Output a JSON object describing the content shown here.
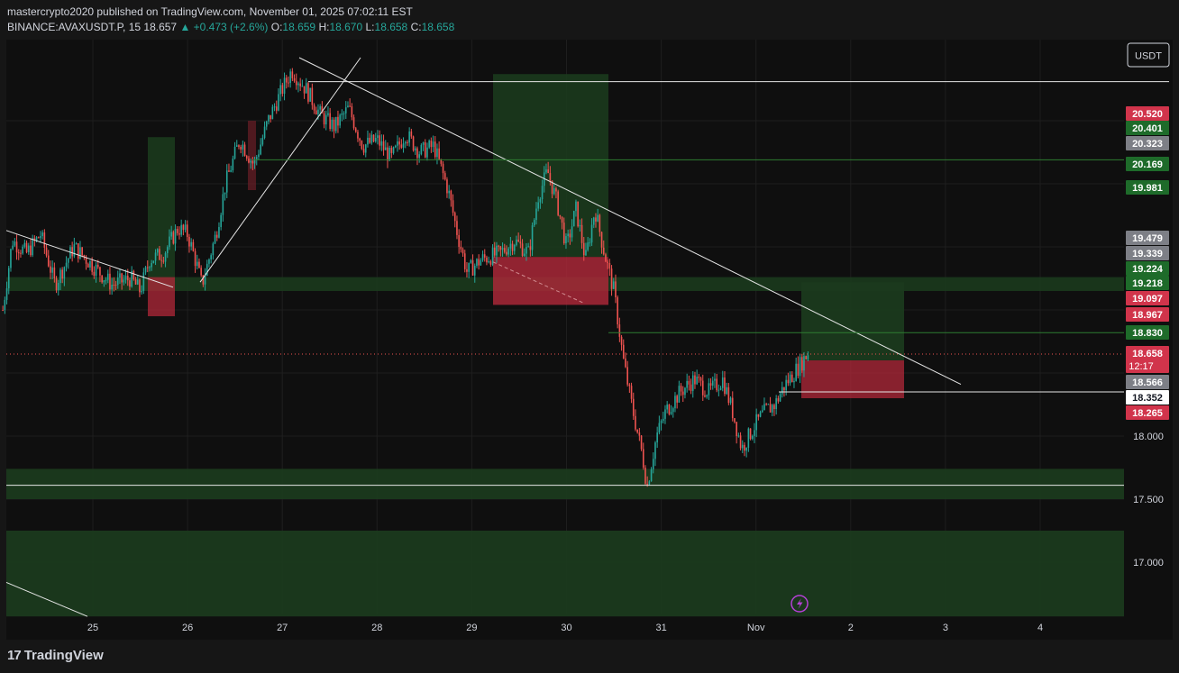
{
  "header": {
    "publisher": "mastercrypto2020 published on TradingView.com, November 01, 2025 07:02:11 EST",
    "symbol": "BINANCE:AVAXUSDT.P, 15",
    "last": "18.657",
    "change": "▲ +0.473 (+2.6%)",
    "o_label": "O:",
    "o_value": "18.659",
    "h_label": "H:",
    "h_value": "18.670",
    "l_label": "L:",
    "l_value": "18.658",
    "c_label": "C:",
    "c_value": "18.658"
  },
  "currency_button": "USDT",
  "footer": {
    "logo_text": "TradingView"
  },
  "colors": {
    "background": "#161616",
    "chart_area": "#0f0f0f",
    "up": "#26a69a",
    "down": "#ef5350",
    "green_zone": "#1b3a1d",
    "red_zone": "#b2283a",
    "label_green": "#1e6b2a",
    "label_red": "#d1344b",
    "label_gray": "#7d7f86"
  },
  "chart_data": {
    "type": "candlestick",
    "x_tick_labels": [
      "25",
      "26",
      "27",
      "28",
      "29",
      "30",
      "31",
      "Nov",
      "2",
      "3",
      "4"
    ],
    "y_tick_labels": [
      "18.000",
      "17.500",
      "17.000"
    ],
    "ylim": [
      16.57,
      21.08
    ],
    "price_labels": [
      {
        "text": "20.520",
        "value": 20.52,
        "style": "red"
      },
      {
        "text": "20.401",
        "value": 20.401,
        "style": "green"
      },
      {
        "text": "20.323",
        "value": 20.323,
        "style": "gray"
      },
      {
        "text": "20.169",
        "value": 20.169,
        "style": "green"
      },
      {
        "text": "19.981",
        "value": 19.981,
        "style": "green"
      },
      {
        "text": "19.479",
        "value": 19.479,
        "style": "gray"
      },
      {
        "text": "19.339",
        "value": 19.339,
        "style": "gray"
      },
      {
        "text": "19.224",
        "value": 19.224,
        "style": "green"
      },
      {
        "text": "19.218",
        "value": 19.218,
        "style": "green"
      },
      {
        "text": "19.097",
        "value": 19.097,
        "style": "red"
      },
      {
        "text": "18.967",
        "value": 18.967,
        "style": "red"
      },
      {
        "text": "18.830",
        "value": 18.83,
        "style": "green"
      },
      {
        "text": "18.658",
        "value": 18.658,
        "style": "red",
        "sub": "12:17"
      },
      {
        "text": "18.566",
        "value": 18.566,
        "style": "gray"
      },
      {
        "text": "18.352",
        "value": 18.352,
        "style": "white"
      },
      {
        "text": "18.265",
        "value": 18.265,
        "style": "red"
      }
    ],
    "price_path": [
      {
        "day": 24.05,
        "price": 19.0
      },
      {
        "day": 24.15,
        "price": 19.55
      },
      {
        "day": 24.3,
        "price": 19.45
      },
      {
        "day": 24.45,
        "price": 19.6
      },
      {
        "day": 24.6,
        "price": 19.2
      },
      {
        "day": 24.8,
        "price": 19.5
      },
      {
        "day": 25.0,
        "price": 19.35
      },
      {
        "day": 25.2,
        "price": 19.2
      },
      {
        "day": 25.4,
        "price": 19.25
      },
      {
        "day": 25.5,
        "price": 19.15
      },
      {
        "day": 25.6,
        "price": 19.4
      },
      {
        "day": 25.75,
        "price": 19.45
      },
      {
        "day": 25.9,
        "price": 19.65
      },
      {
        "day": 26.0,
        "price": 19.6
      },
      {
        "day": 26.1,
        "price": 19.35
      },
      {
        "day": 26.15,
        "price": 19.2
      },
      {
        "day": 26.3,
        "price": 19.6
      },
      {
        "day": 26.4,
        "price": 20.0
      },
      {
        "day": 26.55,
        "price": 20.35
      },
      {
        "day": 26.7,
        "price": 20.15
      },
      {
        "day": 26.85,
        "price": 20.5
      },
      {
        "day": 27.0,
        "price": 20.75
      },
      {
        "day": 27.1,
        "price": 20.9
      },
      {
        "day": 27.25,
        "price": 20.75
      },
      {
        "day": 27.4,
        "price": 20.55
      },
      {
        "day": 27.55,
        "price": 20.45
      },
      {
        "day": 27.7,
        "price": 20.6
      },
      {
        "day": 27.85,
        "price": 20.3
      },
      {
        "day": 28.0,
        "price": 20.35
      },
      {
        "day": 28.15,
        "price": 20.2
      },
      {
        "day": 28.3,
        "price": 20.4
      },
      {
        "day": 28.45,
        "price": 20.25
      },
      {
        "day": 28.6,
        "price": 20.3
      },
      {
        "day": 28.75,
        "price": 19.95
      },
      {
        "day": 28.85,
        "price": 19.6
      },
      {
        "day": 28.95,
        "price": 19.3
      },
      {
        "day": 29.1,
        "price": 19.4
      },
      {
        "day": 29.3,
        "price": 19.45
      },
      {
        "day": 29.45,
        "price": 19.55
      },
      {
        "day": 29.6,
        "price": 19.45
      },
      {
        "day": 29.7,
        "price": 19.9
      },
      {
        "day": 29.8,
        "price": 20.1
      },
      {
        "day": 29.9,
        "price": 19.85
      },
      {
        "day": 30.0,
        "price": 19.5
      },
      {
        "day": 30.1,
        "price": 19.8
      },
      {
        "day": 30.2,
        "price": 19.4
      },
      {
        "day": 30.3,
        "price": 19.8
      },
      {
        "day": 30.4,
        "price": 19.45
      },
      {
        "day": 30.5,
        "price": 19.15
      },
      {
        "day": 30.6,
        "price": 18.6
      },
      {
        "day": 30.7,
        "price": 18.2
      },
      {
        "day": 30.8,
        "price": 17.85
      },
      {
        "day": 30.85,
        "price": 17.6
      },
      {
        "day": 30.95,
        "price": 18.0
      },
      {
        "day": 31.05,
        "price": 18.2
      },
      {
        "day": 31.2,
        "price": 18.35
      },
      {
        "day": 31.35,
        "price": 18.45
      },
      {
        "day": 31.5,
        "price": 18.35
      },
      {
        "day": 31.65,
        "price": 18.45
      },
      {
        "day": 31.75,
        "price": 18.2
      },
      {
        "day": 31.85,
        "price": 17.9
      },
      {
        "day": 32.0,
        "price": 18.1
      },
      {
        "day": 32.1,
        "price": 18.2
      },
      {
        "day": 32.2,
        "price": 18.25
      },
      {
        "day": 32.3,
        "price": 18.4
      },
      {
        "day": 32.45,
        "price": 18.55
      },
      {
        "day": 32.55,
        "price": 18.66
      }
    ]
  }
}
